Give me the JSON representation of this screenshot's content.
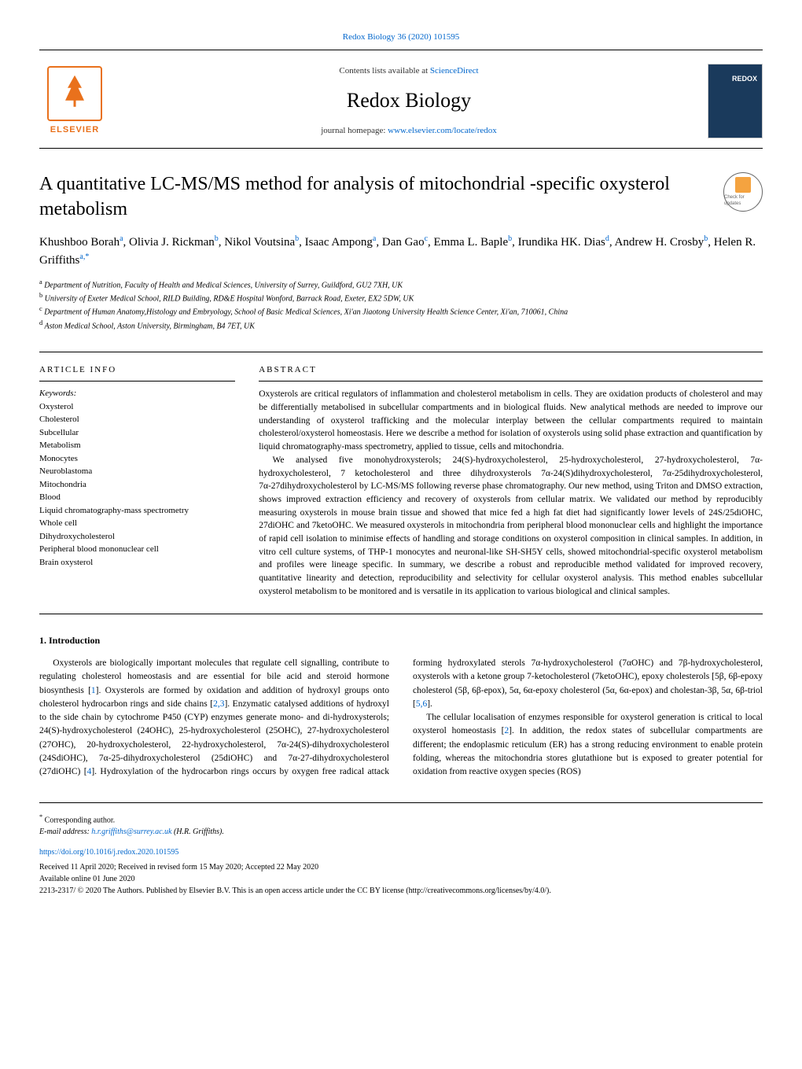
{
  "header": {
    "citation": "Redox Biology 36 (2020) 101595",
    "contents_prefix": "Contents lists available at ",
    "contents_link": "ScienceDirect",
    "journal_name": "Redox Biology",
    "homepage_prefix": "journal homepage: ",
    "homepage_link": "www.elsevier.com/locate/redox",
    "publisher_logo_text": "ELSEVIER",
    "cover_label": "REDOX"
  },
  "updates_badge": "Check for updates",
  "article": {
    "title": "A quantitative LC-MS/MS method for analysis of mitochondrial -specific oxysterol metabolism",
    "authors_html": "Khushboo Borah<sup>a</sup>, Olivia J. Rickman<sup>b</sup>, Nikol Voutsina<sup>b</sup>, Isaac Ampong<sup>a</sup>, Dan Gao<sup>c</sup>, Emma L. Baple<sup>b</sup>, Irundika HK. Dias<sup>d</sup>, Andrew H. Crosby<sup>b</sup>, Helen R. Griffiths<sup>a,*</sup>",
    "affiliations": [
      {
        "marker": "a",
        "text": "Department of Nutrition, Faculty of Health and Medical Sciences, University of Surrey, Guildford, GU2 7XH, UK"
      },
      {
        "marker": "b",
        "text": "University of Exeter Medical School, RILD Building, RD&E Hospital Wonford, Barrack Road, Exeter, EX2 5DW, UK"
      },
      {
        "marker": "c",
        "text": "Department of Human Anatomy,Histology and Embryology, School of Basic Medical Sciences, Xi'an Jiaotong University Health Science Center, Xi'an, 710061, China"
      },
      {
        "marker": "d",
        "text": "Aston Medical School, Aston University, Birmingham, B4 7ET, UK"
      }
    ]
  },
  "info": {
    "heading": "ARTICLE INFO",
    "keywords_label": "Keywords:",
    "keywords": [
      "Oxysterol",
      "Cholesterol",
      "Subcellular",
      "Metabolism",
      "Monocytes",
      "Neuroblastoma",
      "Mitochondria",
      "Blood",
      "Liquid chromatography-mass spectrometry",
      "Whole cell",
      "Dihydroxycholesterol",
      "Peripheral blood mononuclear cell",
      "Brain oxysterol"
    ]
  },
  "abstract": {
    "heading": "ABSTRACT",
    "paragraphs": [
      "Oxysterols are critical regulators of inflammation and cholesterol metabolism in cells. They are oxidation products of cholesterol and may be differentially metabolised in subcellular compartments and in biological fluids. New analytical methods are needed to improve our understanding of oxysterol trafficking and the molecular interplay between the cellular compartments required to maintain cholesterol/oxysterol homeostasis. Here we describe a method for isolation of oxysterols using solid phase extraction and quantification by liquid chromatography-mass spectrometry, applied to tissue, cells and mitochondria.",
      "We analysed five monohydroxysterols; 24(S)-hydroxycholesterol, 25-hydroxycholesterol, 27-hydroxycholesterol, 7α-hydroxycholesterol, 7 ketocholesterol and three dihydroxysterols 7α-24(S)dihydroxycholesterol, 7α-25dihydroxycholesterol, 7α-27dihydroxycholesterol by LC-MS/MS following reverse phase chromatography. Our new method, using Triton and DMSO extraction, shows improved extraction efficiency and recovery of oxysterols from cellular matrix. We validated our method by reproducibly measuring oxysterols in mouse brain tissue and showed that mice fed a high fat diet had significantly lower levels of 24S/25diOHC, 27diOHC and 7ketoOHC. We measured oxysterols in mitochondria from peripheral blood mononuclear cells and highlight the importance of rapid cell isolation to minimise effects of handling and storage conditions on oxysterol composition in clinical samples. In addition, in vitro cell culture systems, of THP-1 monocytes and neuronal-like SH-SH5Y cells, showed mitochondrial-specific oxysterol metabolism and profiles were lineage specific. In summary, we describe a robust and reproducible method validated for improved recovery, quantitative linearity and detection, reproducibility and selectivity for cellular oxysterol analysis. This method enables subcellular oxysterol metabolism to be monitored and is versatile in its application to various biological and clinical samples."
    ]
  },
  "body": {
    "section_heading": "1. Introduction",
    "paragraphs": [
      "Oxysterols are biologically important molecules that regulate cell signalling, contribute to regulating cholesterol homeostasis and are essential for bile acid and steroid hormone biosynthesis [1]. Oxysterols are formed by oxidation and addition of hydroxyl groups onto cholesterol hydrocarbon rings and side chains [2,3]. Enzymatic catalysed additions of hydroxyl to the side chain by cytochrome P450 (CYP) enzymes generate mono- and di-hydroxysterols; 24(S)-hydroxycholesterol (24OHC), 25-hydroxycholesterol (25OHC), 27-hydroxycholesterol (27OHC), 20-hydroxycholesterol, 22-hydroxycholesterol, 7α-24(S)-dihydroxycholesterol (24SdiOHC), 7α-25-dihydroxycholesterol (25diOHC) and 7α-27-dihydroxycholesterol (27diOHC) [4]. Hydroxylation of the hydrocarbon rings occurs by oxygen free radical attack forming hydroxylated sterols 7α-hydroxycholesterol (7αOHC) and 7β-hydroxycholesterol, oxysterols with a ketone group 7-ketocholesterol (7ketoOHC), epoxy cholesterols [5β, 6β-epoxy cholesterol (5β, 6β-epox), 5α, 6α-epoxy cholesterol (5α, 6α-epox) and cholestan-3β, 5α, 6β-triol [5,6].",
      "The cellular localisation of enzymes responsible for oxysterol generation is critical to local oxysterol homeostasis [2]. In addition, the redox states of subcellular compartments are different; the endoplasmic reticulum (ER) has a strong reducing environment to enable protein folding, whereas the mitochondria stores glutathione but is exposed to greater potential for oxidation from reactive oxygen species (ROS)"
    ]
  },
  "footer": {
    "corresponding_marker": "*",
    "corresponding_label": "Corresponding author.",
    "email_label": "E-mail address: ",
    "email": "h.r.griffiths@surrey.ac.uk",
    "email_author": " (H.R. Griffiths).",
    "doi": "https://doi.org/10.1016/j.redox.2020.101595",
    "dates": "Received 11 April 2020; Received in revised form 15 May 2020; Accepted 22 May 2020",
    "available": "Available online 01 June 2020",
    "copyright": "2213-2317/ © 2020 The Authors. Published by Elsevier B.V. This is an open access article under the CC BY license (http://creativecommons.org/licenses/by/4.0/)."
  },
  "colors": {
    "link": "#0066cc",
    "elsevier_orange": "#e9711c",
    "cover_bg": "#1a3a5c",
    "badge_mark": "#f4a340"
  }
}
